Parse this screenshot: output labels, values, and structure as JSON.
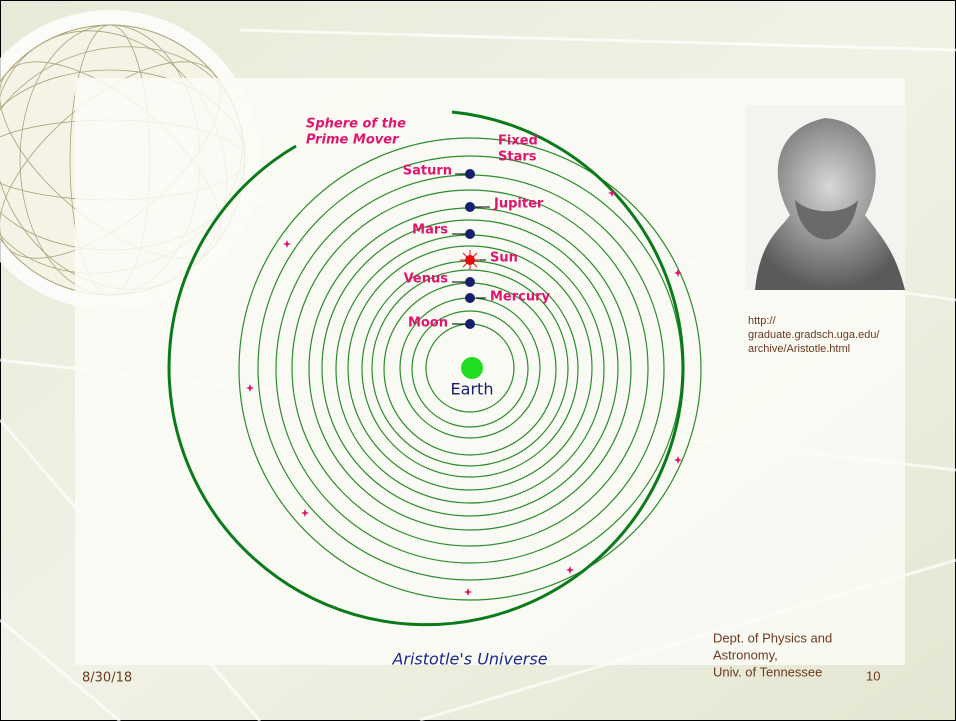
{
  "diagram": {
    "caption": "Aristotle's Universe",
    "outer_sphere": [
      "Sphere of the",
      "Prime Mover"
    ],
    "fixed_stars": [
      "Fixed",
      "Stars"
    ],
    "bodies": {
      "saturn": "Saturn",
      "jupiter": "Jupiter",
      "mars": "Mars",
      "sun": "Sun",
      "venus": "Venus",
      "mercury": "Mercury",
      "moon": "Moon",
      "earth": "Earth"
    }
  },
  "image_credit": [
    "http://",
    "graduate.gradsch.uga.edu/",
    "archive/Aristotle.html"
  ],
  "footer": {
    "date": "8/30/18",
    "department": [
      "Dept. of Physics and",
      "Astronomy,",
      "Univ. of Tennessee"
    ],
    "slide_number": "10"
  }
}
